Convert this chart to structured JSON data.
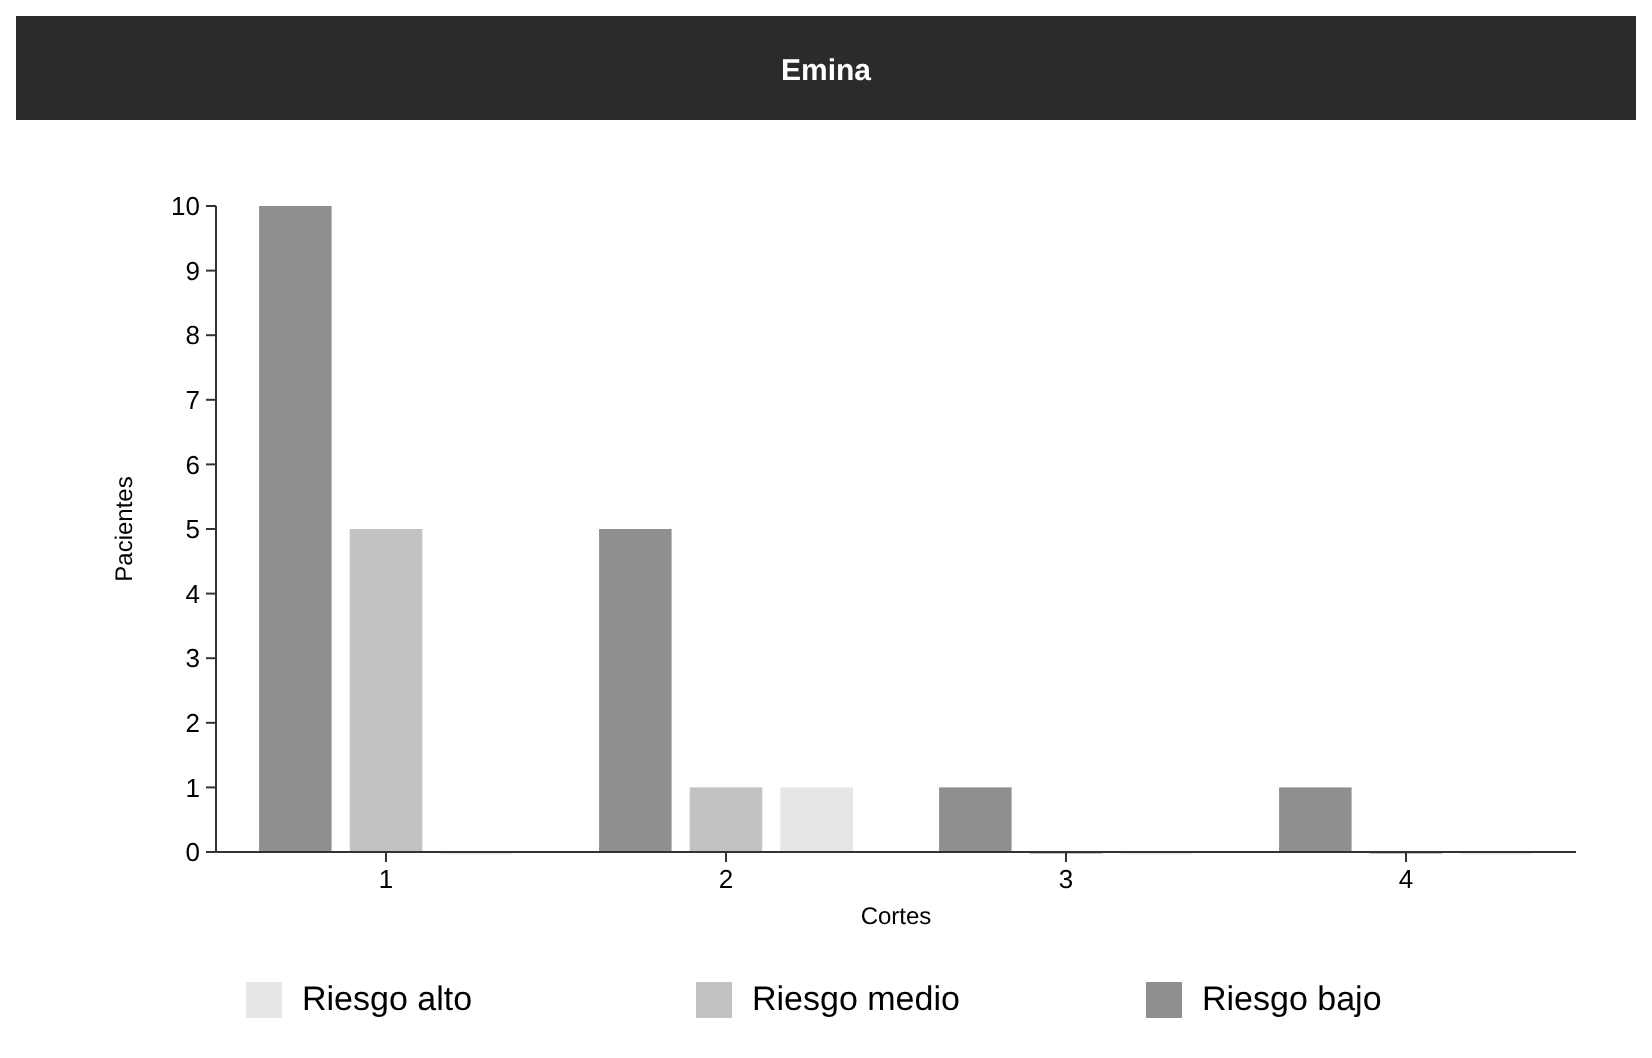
{
  "chart_data": {
    "type": "bar",
    "title": "Emina",
    "xlabel": "Cortes",
    "ylabel": "Pacientes",
    "categories": [
      "1",
      "2",
      "3",
      "4"
    ],
    "series": [
      {
        "name": "Riesgo alto",
        "color": "#e6e6e6",
        "values": [
          0,
          1,
          0,
          0
        ]
      },
      {
        "name": "Riesgo medio",
        "color": "#c2c2c2",
        "values": [
          5,
          1,
          0,
          0
        ]
      },
      {
        "name": "Riesgo bajo",
        "color": "#8f8f8f",
        "values": [
          10,
          5,
          1,
          1
        ]
      }
    ],
    "ylim": [
      0,
      10
    ],
    "yticks": [
      0,
      1,
      2,
      3,
      4,
      5,
      6,
      7,
      8,
      9,
      10
    ],
    "grid": false,
    "legend": "bottom"
  }
}
